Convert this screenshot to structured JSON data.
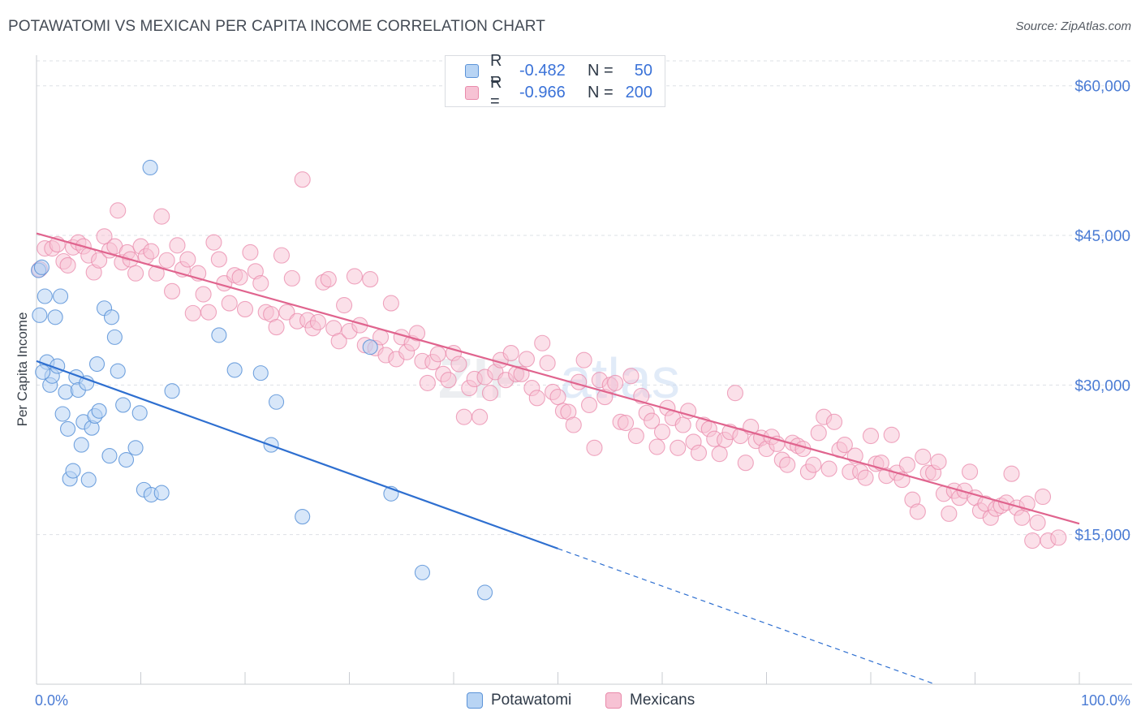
{
  "title": "POTAWATOMI VS MEXICAN PER CAPITA INCOME CORRELATION CHART",
  "source": "Source: ZipAtlas.com",
  "legend": {
    "potawatomi": {
      "r_label": "R =",
      "r_value": "-0.482",
      "n_label": "N =",
      "n_value": "50"
    },
    "mexicans": {
      "r_label": "R =",
      "r_value": "-0.966",
      "n_label": "N =",
      "n_value": "200"
    }
  },
  "colors": {
    "potawatomi_fill": "#b8d4f4",
    "potawatomi_stroke": "#5b93d8",
    "potawatomi_line": "#2e6fd0",
    "mexicans_fill": "#f7c2d4",
    "mexicans_stroke": "#e98aab",
    "mexicans_line": "#e0648e",
    "axis_label": "#4a7bd4",
    "grid": "#dde0e5"
  },
  "chart_data": {
    "type": "scatter",
    "title": "POTAWATOMI VS MEXICAN PER CAPITA INCOME CORRELATION CHART",
    "xlabel": "",
    "ylabel": "Per Capita Income",
    "xlim": [
      0,
      100
    ],
    "ylim": [
      0,
      62500
    ],
    "x_tick_labels": [
      "0.0%",
      "100.0%"
    ],
    "y_ticks": [
      15000,
      30000,
      45000,
      60000
    ],
    "y_tick_labels": [
      "$15,000",
      "$30,000",
      "$45,000",
      "$60,000"
    ],
    "grid": true,
    "legend_position": "top-center",
    "series": [
      {
        "name": "Potawatomi",
        "r": -0.482,
        "n": 50,
        "trend": {
          "x0": 0,
          "y0": 32400,
          "x1": 50,
          "y1": 13600,
          "dashed_to_x": 100,
          "dashed_to_y": -5200
        },
        "points": [
          [
            0.2,
            41500
          ],
          [
            0.3,
            37000
          ],
          [
            0.5,
            41800
          ],
          [
            0.8,
            38900
          ],
          [
            1.0,
            32300
          ],
          [
            1.3,
            30000
          ],
          [
            1.5,
            30900
          ],
          [
            1.8,
            36800
          ],
          [
            2.0,
            31900
          ],
          [
            2.3,
            38900
          ],
          [
            2.5,
            27100
          ],
          [
            2.8,
            29300
          ],
          [
            3.0,
            25600
          ],
          [
            3.2,
            20600
          ],
          [
            3.5,
            21400
          ],
          [
            3.8,
            30800
          ],
          [
            4.0,
            29500
          ],
          [
            4.3,
            24000
          ],
          [
            4.5,
            26300
          ],
          [
            4.8,
            30200
          ],
          [
            5.0,
            20500
          ],
          [
            5.3,
            25700
          ],
          [
            5.6,
            26900
          ],
          [
            5.8,
            32100
          ],
          [
            6.0,
            27400
          ],
          [
            6.5,
            37700
          ],
          [
            7.0,
            22900
          ],
          [
            7.5,
            34800
          ],
          [
            7.8,
            31400
          ],
          [
            8.3,
            28000
          ],
          [
            8.6,
            22500
          ],
          [
            9.5,
            23700
          ],
          [
            9.9,
            27200
          ],
          [
            10.3,
            19500
          ],
          [
            11.0,
            19000
          ],
          [
            10.9,
            51800
          ],
          [
            12.0,
            19200
          ],
          [
            13.0,
            29400
          ],
          [
            17.5,
            35000
          ],
          [
            19.0,
            31500
          ],
          [
            21.5,
            31200
          ],
          [
            22.5,
            24000
          ],
          [
            23.0,
            28300
          ],
          [
            25.5,
            16800
          ],
          [
            32.0,
            33800
          ],
          [
            34.0,
            19100
          ],
          [
            37.0,
            11200
          ],
          [
            43.0,
            9200
          ],
          [
            0.6,
            31300
          ],
          [
            7.2,
            36800
          ]
        ]
      },
      {
        "name": "Mexicans",
        "r": -0.966,
        "n": 200,
        "trend": {
          "x0": 0,
          "y0": 45200,
          "x1": 100,
          "y1": 16100
        },
        "points": [
          [
            0.3,
            41600
          ],
          [
            0.8,
            43700
          ],
          [
            1.5,
            43700
          ],
          [
            2.0,
            44100
          ],
          [
            2.6,
            42400
          ],
          [
            3.0,
            42000
          ],
          [
            3.5,
            43800
          ],
          [
            4.0,
            44300
          ],
          [
            4.5,
            43900
          ],
          [
            5.0,
            43000
          ],
          [
            5.5,
            41300
          ],
          [
            6.0,
            42500
          ],
          [
            6.5,
            44900
          ],
          [
            7.0,
            43500
          ],
          [
            7.5,
            43900
          ],
          [
            7.8,
            47500
          ],
          [
            8.2,
            42300
          ],
          [
            8.7,
            43300
          ],
          [
            9.0,
            42600
          ],
          [
            9.5,
            41200
          ],
          [
            10.0,
            43900
          ],
          [
            10.5,
            42900
          ],
          [
            11.0,
            43400
          ],
          [
            11.5,
            41200
          ],
          [
            12.0,
            46900
          ],
          [
            12.5,
            42500
          ],
          [
            13.0,
            39400
          ],
          [
            13.5,
            44000
          ],
          [
            14.0,
            41600
          ],
          [
            14.5,
            42600
          ],
          [
            15.0,
            37200
          ],
          [
            15.5,
            41200
          ],
          [
            16.0,
            39100
          ],
          [
            16.5,
            37300
          ],
          [
            17.0,
            44300
          ],
          [
            17.5,
            42600
          ],
          [
            18.0,
            40200
          ],
          [
            18.5,
            38200
          ],
          [
            19.0,
            41000
          ],
          [
            19.5,
            40800
          ],
          [
            20.0,
            37600
          ],
          [
            20.5,
            43300
          ],
          [
            21.0,
            41400
          ],
          [
            21.5,
            40200
          ],
          [
            22.0,
            37300
          ],
          [
            22.5,
            37100
          ],
          [
            23.0,
            35800
          ],
          [
            23.5,
            43000
          ],
          [
            24.0,
            37300
          ],
          [
            24.5,
            40700
          ],
          [
            25.0,
            36400
          ],
          [
            25.5,
            50600
          ],
          [
            26.0,
            36500
          ],
          [
            26.5,
            35700
          ],
          [
            27.0,
            36300
          ],
          [
            27.5,
            40300
          ],
          [
            28.0,
            40600
          ],
          [
            28.5,
            35700
          ],
          [
            29.0,
            34400
          ],
          [
            29.5,
            38000
          ],
          [
            30.0,
            35400
          ],
          [
            30.5,
            40900
          ],
          [
            31.0,
            36000
          ],
          [
            31.5,
            34000
          ],
          [
            32.0,
            40600
          ],
          [
            32.5,
            33700
          ],
          [
            33.0,
            34800
          ],
          [
            33.5,
            33000
          ],
          [
            34.0,
            38200
          ],
          [
            34.5,
            32600
          ],
          [
            35.0,
            34800
          ],
          [
            35.5,
            33300
          ],
          [
            36.0,
            34200
          ],
          [
            36.5,
            35200
          ],
          [
            37.0,
            32400
          ],
          [
            37.5,
            30200
          ],
          [
            38.0,
            32300
          ],
          [
            38.5,
            33100
          ],
          [
            39.0,
            31100
          ],
          [
            39.5,
            30500
          ],
          [
            40.0,
            33200
          ],
          [
            40.5,
            32100
          ],
          [
            41.0,
            26800
          ],
          [
            41.5,
            29700
          ],
          [
            42.0,
            30600
          ],
          [
            42.5,
            26800
          ],
          [
            43.0,
            30800
          ],
          [
            43.5,
            29200
          ],
          [
            44.0,
            31300
          ],
          [
            44.5,
            32500
          ],
          [
            45.0,
            30500
          ],
          [
            45.5,
            33200
          ],
          [
            46.0,
            31100
          ],
          [
            46.5,
            31100
          ],
          [
            47.0,
            32600
          ],
          [
            47.5,
            29700
          ],
          [
            48.0,
            28700
          ],
          [
            48.5,
            34200
          ],
          [
            49.0,
            32200
          ],
          [
            49.5,
            29300
          ],
          [
            50.0,
            28800
          ],
          [
            50.5,
            27400
          ],
          [
            51.0,
            27300
          ],
          [
            51.5,
            26000
          ],
          [
            52.0,
            30300
          ],
          [
            52.5,
            32500
          ],
          [
            53.0,
            28000
          ],
          [
            53.5,
            23700
          ],
          [
            54.0,
            30500
          ],
          [
            54.5,
            28800
          ],
          [
            55.0,
            30000
          ],
          [
            55.5,
            30200
          ],
          [
            56.0,
            26300
          ],
          [
            56.5,
            26200
          ],
          [
            57.0,
            30900
          ],
          [
            57.5,
            24900
          ],
          [
            58.0,
            28900
          ],
          [
            58.5,
            27200
          ],
          [
            59.0,
            26400
          ],
          [
            59.5,
            23800
          ],
          [
            60.0,
            25300
          ],
          [
            60.5,
            27700
          ],
          [
            61.0,
            26700
          ],
          [
            61.5,
            23700
          ],
          [
            62.0,
            26000
          ],
          [
            62.5,
            27400
          ],
          [
            63.0,
            24300
          ],
          [
            63.5,
            23200
          ],
          [
            64.0,
            26000
          ],
          [
            64.5,
            25600
          ],
          [
            65.0,
            24600
          ],
          [
            65.5,
            23100
          ],
          [
            66.0,
            24500
          ],
          [
            66.5,
            25300
          ],
          [
            67.0,
            29200
          ],
          [
            67.5,
            24900
          ],
          [
            68.0,
            22200
          ],
          [
            68.5,
            25800
          ],
          [
            69.0,
            24400
          ],
          [
            69.5,
            24700
          ],
          [
            70.0,
            23600
          ],
          [
            70.5,
            24800
          ],
          [
            71.0,
            24100
          ],
          [
            71.5,
            22500
          ],
          [
            72.0,
            22000
          ],
          [
            72.5,
            24200
          ],
          [
            73.0,
            23900
          ],
          [
            73.5,
            23600
          ],
          [
            74.0,
            21300
          ],
          [
            74.5,
            22000
          ],
          [
            75.0,
            25200
          ],
          [
            75.5,
            26800
          ],
          [
            76.0,
            21600
          ],
          [
            76.5,
            26300
          ],
          [
            77.0,
            23500
          ],
          [
            77.5,
            24000
          ],
          [
            78.0,
            21300
          ],
          [
            78.5,
            22900
          ],
          [
            79.0,
            21300
          ],
          [
            79.5,
            20700
          ],
          [
            80.0,
            24900
          ],
          [
            80.5,
            22100
          ],
          [
            81.0,
            22200
          ],
          [
            81.5,
            20900
          ],
          [
            82.0,
            25000
          ],
          [
            82.5,
            21200
          ],
          [
            83.0,
            20500
          ],
          [
            83.5,
            22000
          ],
          [
            84.0,
            18500
          ],
          [
            84.5,
            17300
          ],
          [
            85.0,
            22800
          ],
          [
            85.5,
            21200
          ],
          [
            86.0,
            21200
          ],
          [
            86.5,
            22300
          ],
          [
            87.0,
            19100
          ],
          [
            87.5,
            17100
          ],
          [
            88.0,
            19400
          ],
          [
            88.5,
            18700
          ],
          [
            89.0,
            19400
          ],
          [
            89.5,
            21300
          ],
          [
            90.0,
            18700
          ],
          [
            90.5,
            17400
          ],
          [
            91.0,
            18100
          ],
          [
            91.5,
            16700
          ],
          [
            92.0,
            17600
          ],
          [
            92.5,
            17900
          ],
          [
            93.0,
            18200
          ],
          [
            93.5,
            21100
          ],
          [
            94.0,
            17700
          ],
          [
            94.5,
            16700
          ],
          [
            95.0,
            18100
          ],
          [
            95.5,
            14400
          ],
          [
            96.0,
            16200
          ],
          [
            96.5,
            18800
          ],
          [
            97.0,
            14400
          ],
          [
            98.0,
            14700
          ]
        ]
      }
    ]
  }
}
